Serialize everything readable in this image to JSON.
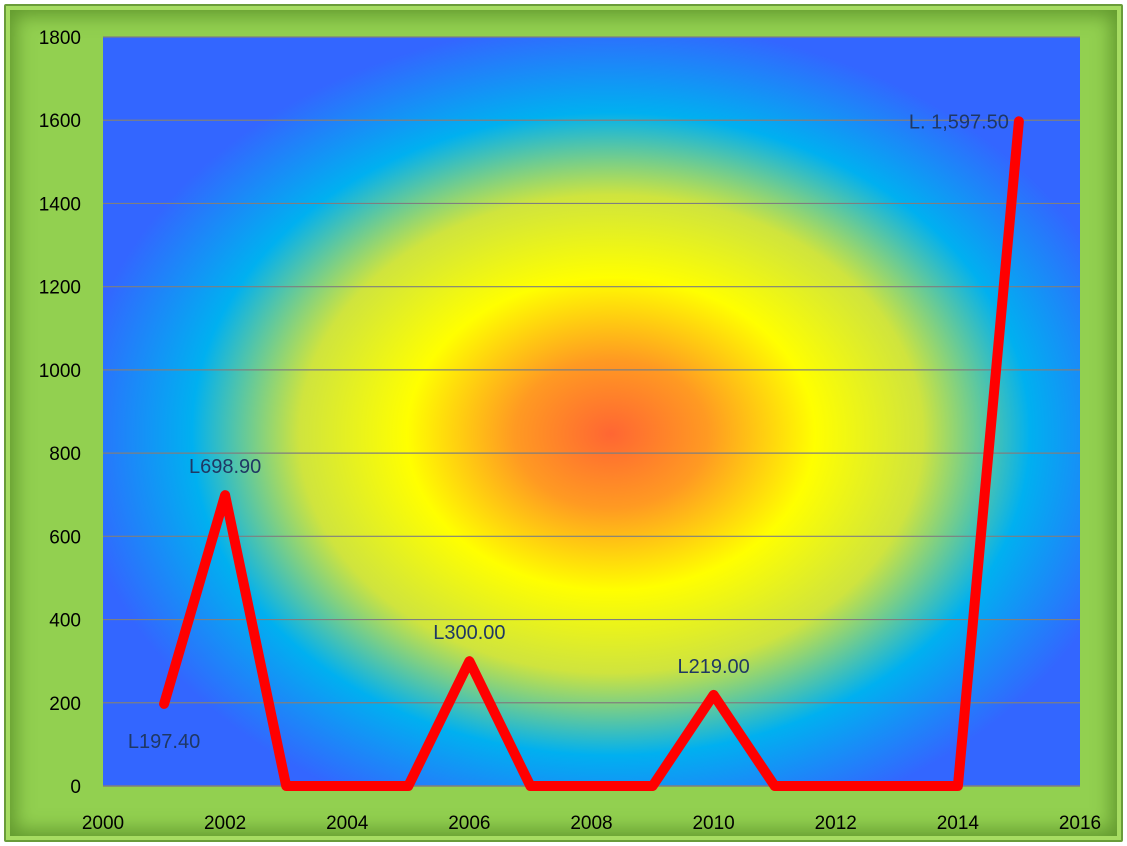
{
  "chart_data": {
    "type": "line",
    "title": "",
    "xlabel": "",
    "ylabel": "",
    "xlim": [
      2000,
      2016
    ],
    "ylim": [
      0,
      1800
    ],
    "x_ticks": [
      "2000",
      "2002",
      "2004",
      "2006",
      "2008",
      "2010",
      "2012",
      "2014",
      "2016"
    ],
    "y_ticks": [
      "0",
      "200",
      "400",
      "600",
      "800",
      "1000",
      "1200",
      "1400",
      "1600",
      "1800"
    ],
    "grid": "horizontal",
    "legend": "none",
    "series": [
      {
        "x": [
          2001,
          2002,
          2003,
          2004,
          2005,
          2006,
          2007,
          2008,
          2009,
          2010,
          2011,
          2012,
          2013,
          2014,
          2015
        ],
        "values": [
          197.4,
          698.9,
          0,
          0,
          0,
          300,
          0,
          0,
          0,
          219,
          0,
          0,
          0,
          0,
          1597.5
        ],
        "color": "#ff0000"
      }
    ],
    "data_labels": [
      {
        "x": 2001,
        "y": 197.4,
        "text": "L197.40",
        "position": "below"
      },
      {
        "x": 2002,
        "y": 698.9,
        "text": "L698.90",
        "position": "above"
      },
      {
        "x": 2006,
        "y": 300,
        "text": "L300.00",
        "position": "above"
      },
      {
        "x": 2010,
        "y": 219,
        "text": "L219.00",
        "position": "above"
      },
      {
        "x": 2015,
        "y": 1597.5,
        "text": "L. 1,597.50",
        "position": "left"
      }
    ],
    "colors": {
      "frame": "#92d050",
      "line": "#ff0000",
      "gridline": "#7f7f7f",
      "plot_gradient": [
        "#ff6633",
        "#ffaa22",
        "#ffff00",
        "#d8e640",
        "#00b0f0",
        "#3366ff"
      ]
    }
  }
}
